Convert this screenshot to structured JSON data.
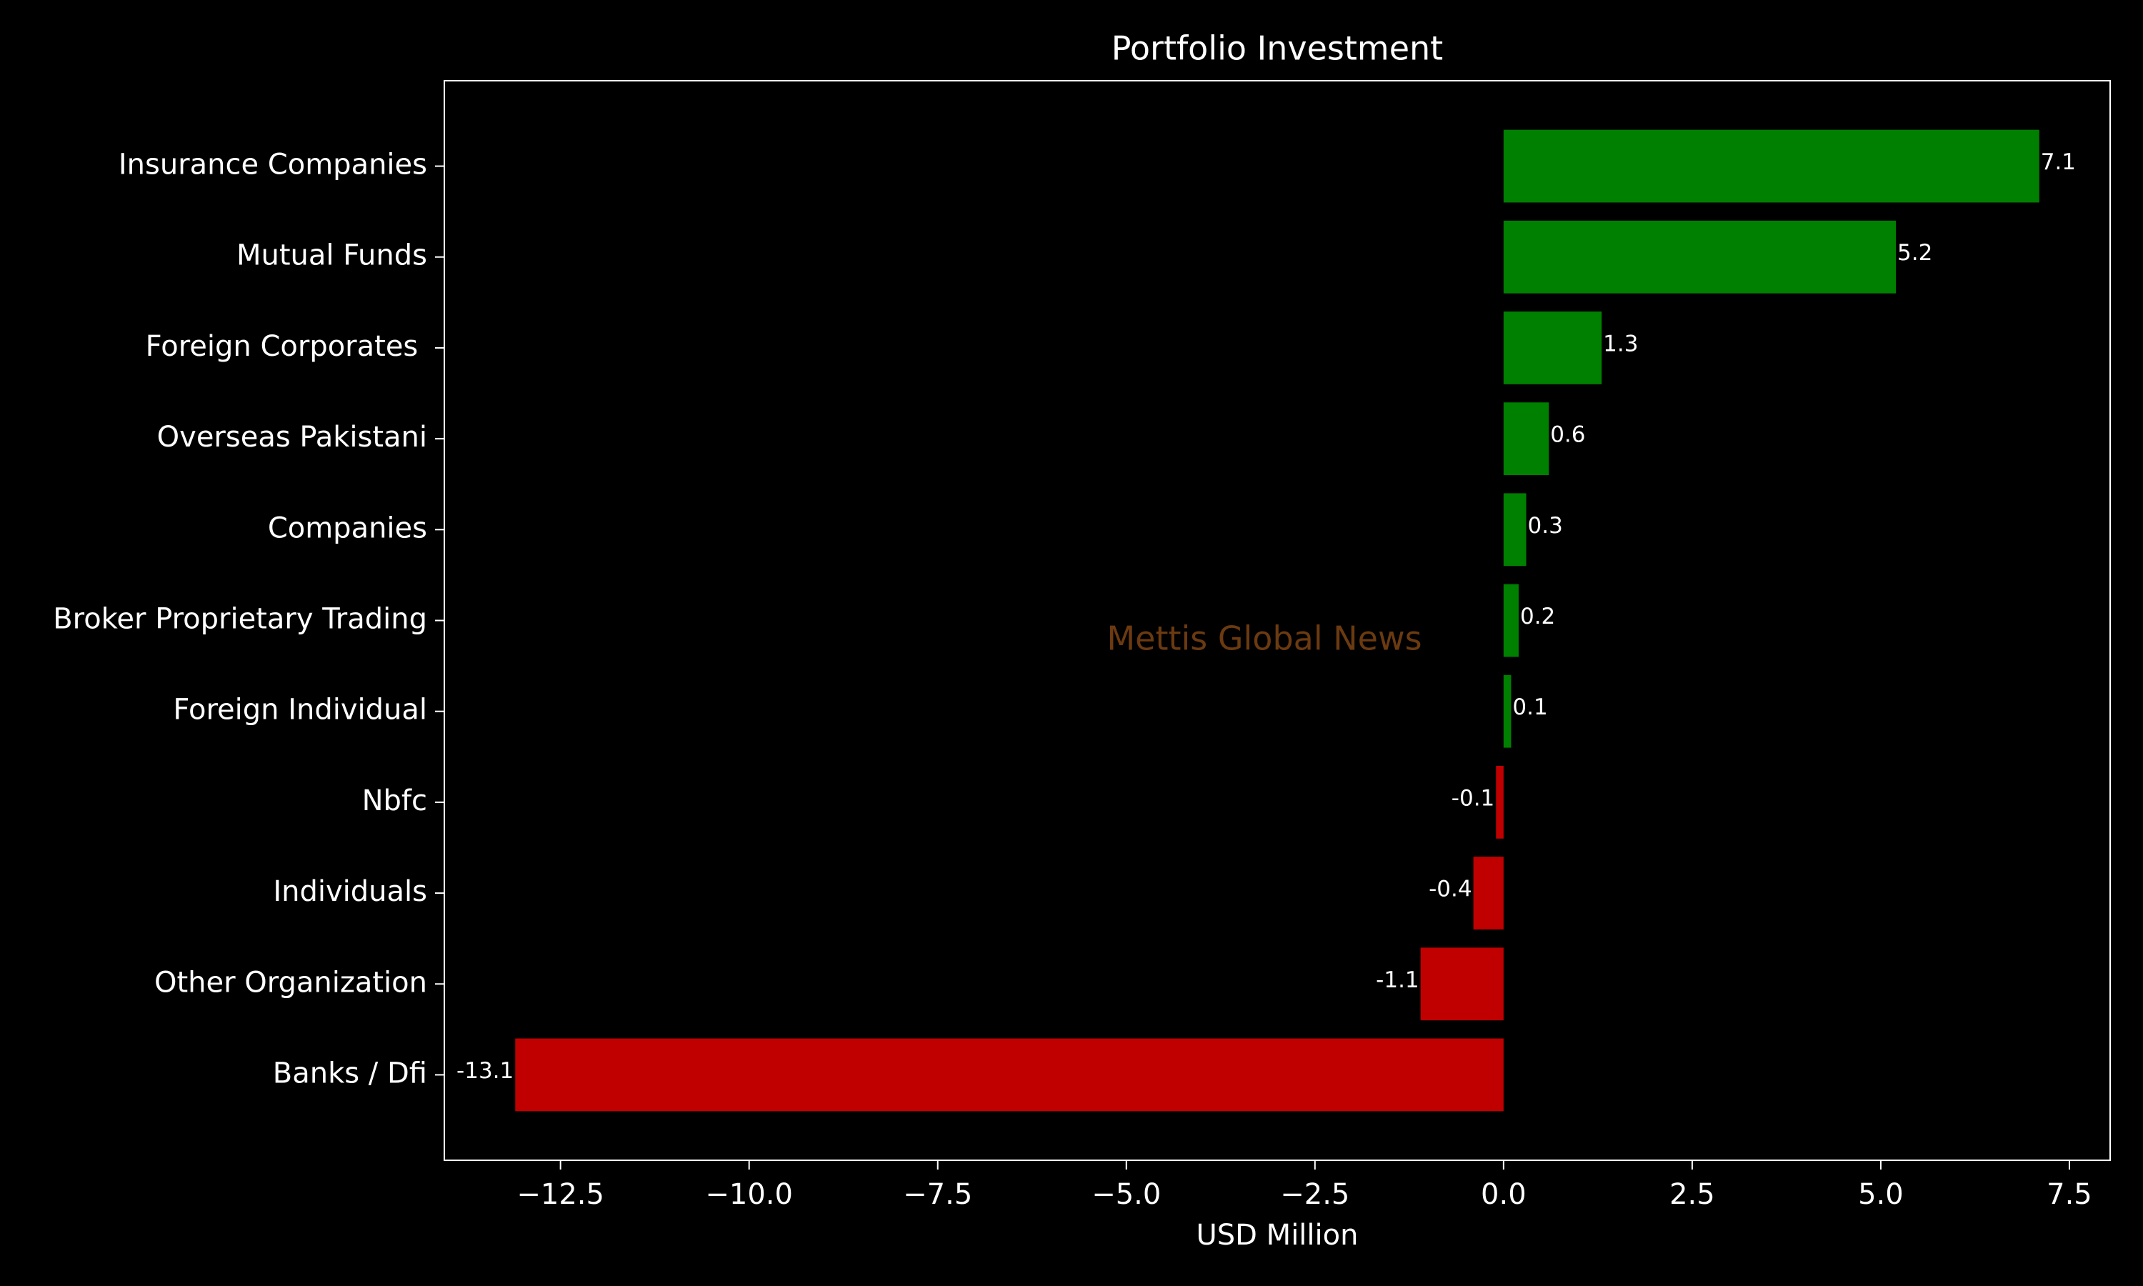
{
  "chart_data": {
    "type": "barh",
    "title": "Portfolio Investment",
    "x_label": "USD Million",
    "watermark": "Mettis Global News",
    "watermark_color": "#6b3a10",
    "categories": [
      "Insurance Companies",
      "Mutual Funds",
      "Foreign Corporates ",
      "Overseas Pakistani",
      "Companies",
      "Broker Proprietary Trading",
      "Foreign Individual",
      "Nbfc",
      "Individuals",
      "Other Organization",
      "Banks / Dfi"
    ],
    "values": [
      7.1,
      5.2,
      1.3,
      0.6,
      0.3,
      0.2,
      0.1,
      -0.1,
      -0.4,
      -1.1,
      -13.1
    ],
    "positive_color": "#008000",
    "negative_color": "#c00000",
    "xlim": [
      -14.04,
      8.04
    ],
    "xticks": [
      {
        "value": -12.5,
        "label": "−12.5"
      },
      {
        "value": -10,
        "label": "−10.0"
      },
      {
        "value": -7.5,
        "label": "−7.5"
      },
      {
        "value": -5,
        "label": "−5.0"
      },
      {
        "value": -2.5,
        "label": "−2.5"
      },
      {
        "value": 0,
        "label": "0.0"
      },
      2.5,
      {
        "value": 5,
        "label": "5.0"
      },
      7.5
    ],
    "grid": false
  }
}
